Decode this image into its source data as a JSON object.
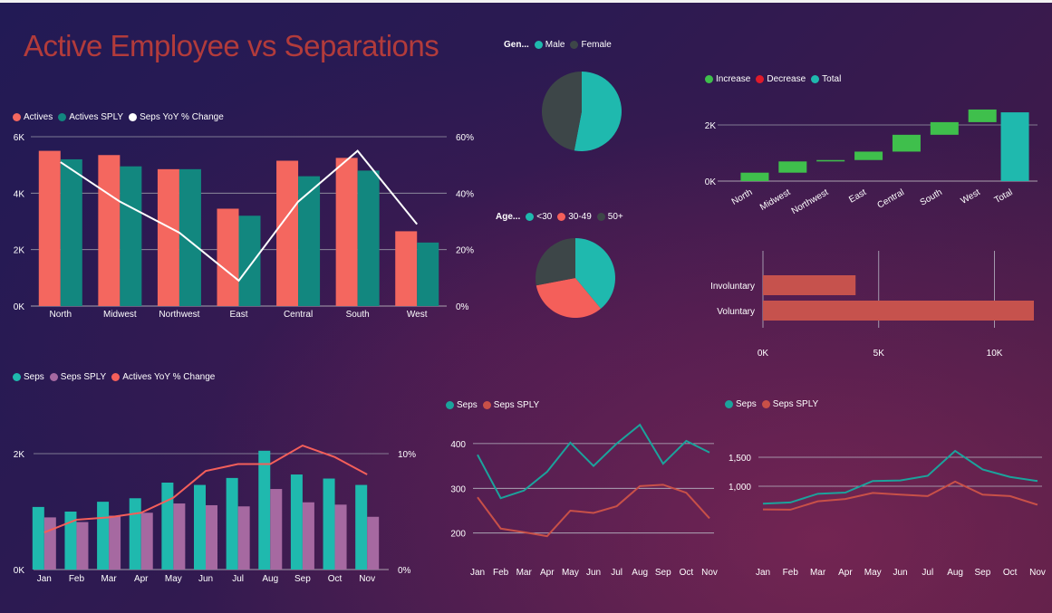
{
  "title": "Active Employee vs Separations",
  "colors": {
    "actives": "#f4675f",
    "actives_sply": "#12877f",
    "white": "#ffffff",
    "teal": "#1fb9ae",
    "violet": "#a669a1",
    "coral": "#f45f5a",
    "increase": "#3fbf4c",
    "decrease": "#e01a2a",
    "dark": "#3d4648",
    "bar_reason": "#c6524d",
    "line_red": "#c85048",
    "line_teal": "#1ba39c"
  },
  "chart_data": [
    {
      "id": "region",
      "type": "bar",
      "title": "",
      "legend": [
        {
          "label": "Actives",
          "color": "#f4675f"
        },
        {
          "label": "Actives SPLY",
          "color": "#12877f"
        },
        {
          "label": "Seps YoY % Change",
          "color": "#ffffff"
        }
      ],
      "categories": [
        "North",
        "Midwest",
        "Northwest",
        "East",
        "Central",
        "South",
        "West"
      ],
      "series": [
        {
          "name": "Actives",
          "values": [
            5500,
            5350,
            4850,
            3450,
            5150,
            5250,
            2650
          ]
        },
        {
          "name": "Actives SPLY",
          "values": [
            5200,
            4950,
            4850,
            3200,
            4600,
            4800,
            2250
          ]
        },
        {
          "name": "Seps YoY % Change",
          "values": [
            51,
            37,
            26,
            9,
            37,
            55,
            29
          ]
        }
      ],
      "y_ticks": [
        "0K",
        "2K",
        "4K",
        "6K"
      ],
      "y2_ticks": [
        "0%",
        "20%",
        "40%",
        "60%"
      ],
      "ylim": [
        0,
        6000
      ],
      "y2lim": [
        0,
        60
      ]
    },
    {
      "id": "gender",
      "type": "pie",
      "legend_title": "Gen...",
      "legend": [
        {
          "label": "Male",
          "color": "#1fb9ae"
        },
        {
          "label": "Female",
          "color": "#3d4648"
        }
      ],
      "values": [
        53,
        47
      ]
    },
    {
      "id": "age",
      "type": "pie",
      "legend_title": "Age...",
      "legend": [
        {
          "label": "<30",
          "color": "#1fb9ae"
        },
        {
          "label": "30-49",
          "color": "#f45f5a"
        },
        {
          "label": "50+",
          "color": "#3d4648"
        }
      ],
      "values": [
        39,
        33,
        28
      ]
    },
    {
      "id": "waterfall",
      "type": "bar",
      "subtype": "waterfall",
      "legend": [
        {
          "label": "Increase",
          "color": "#3fbf4c"
        },
        {
          "label": "Decrease",
          "color": "#e01a2a"
        },
        {
          "label": "Total",
          "color": "#1fb9ae"
        }
      ],
      "categories": [
        "North",
        "Midwest",
        "Northwest",
        "East",
        "Central",
        "South",
        "West",
        "Total"
      ],
      "values": [
        300,
        400,
        50,
        300,
        600,
        450,
        450,
        2450
      ],
      "y_ticks": [
        "0K",
        "2K"
      ],
      "ylim": [
        0,
        2500
      ]
    },
    {
      "id": "reason",
      "type": "bar",
      "orientation": "horizontal",
      "categories": [
        "Involuntary",
        "Voluntary"
      ],
      "values": [
        4000,
        11700
      ],
      "x_ticks": [
        "0K",
        "5K",
        "10K"
      ],
      "xlim": [
        0,
        11700
      ]
    },
    {
      "id": "monthly",
      "type": "bar",
      "legend": [
        {
          "label": "Seps",
          "color": "#1fb9ae"
        },
        {
          "label": "Seps SPLY",
          "color": "#a669a1"
        },
        {
          "label": "Actives YoY % Change",
          "color": "#f45f5a"
        }
      ],
      "categories": [
        "Jan",
        "Feb",
        "Mar",
        "Apr",
        "May",
        "Jun",
        "Jul",
        "Aug",
        "Sep",
        "Oct",
        "Nov"
      ],
      "series": [
        {
          "name": "Seps",
          "values": [
            1080,
            1000,
            1170,
            1230,
            1500,
            1460,
            1580,
            2050,
            1640,
            1570,
            1460
          ]
        },
        {
          "name": "Seps SPLY",
          "values": [
            900,
            820,
            930,
            980,
            1140,
            1110,
            1090,
            1390,
            1160,
            1120,
            910
          ]
        },
        {
          "name": "Actives YoY % Change",
          "values": [
            3.2,
            4.3,
            4.5,
            4.9,
            6.2,
            8.5,
            9.1,
            9.1,
            10.7,
            9.7,
            8.2
          ]
        }
      ],
      "y_ticks": [
        "0K",
        "2K"
      ],
      "y2_ticks": [
        "0%",
        "10%"
      ],
      "ylim": [
        0,
        2200
      ],
      "y2lim": [
        0,
        11
      ]
    },
    {
      "id": "seps_small",
      "type": "line",
      "legend": [
        {
          "label": "Seps",
          "color": "#1ba39c"
        },
        {
          "label": "Seps SPLY",
          "color": "#c85048"
        }
      ],
      "categories": [
        "Jan",
        "Feb",
        "Mar",
        "Apr",
        "May",
        "Jun",
        "Jul",
        "Aug",
        "Sep",
        "Oct",
        "Nov"
      ],
      "series": [
        {
          "name": "Seps",
          "values": [
            375,
            278,
            295,
            337,
            402,
            350,
            400,
            442,
            355,
            406,
            380
          ]
        },
        {
          "name": "Seps SPLY",
          "values": [
            280,
            210,
            202,
            193,
            250,
            245,
            260,
            305,
            308,
            290,
            233
          ]
        }
      ],
      "y_ticks": [
        "200",
        "300",
        "400"
      ],
      "ylim": [
        165,
        420
      ]
    },
    {
      "id": "seps_large",
      "type": "line",
      "legend": [
        {
          "label": "Seps",
          "color": "#1ba39c"
        },
        {
          "label": "Seps SPLY",
          "color": "#c85048"
        }
      ],
      "categories": [
        "Jan",
        "Feb",
        "Mar",
        "Apr",
        "May",
        "Jun",
        "Jul",
        "Aug",
        "Sep",
        "Oct",
        "Nov"
      ],
      "series": [
        {
          "name": "Seps",
          "values": [
            700,
            720,
            870,
            890,
            1090,
            1100,
            1180,
            1610,
            1290,
            1160,
            1090
          ]
        },
        {
          "name": "Seps SPLY",
          "values": [
            600,
            595,
            740,
            780,
            885,
            855,
            830,
            1080,
            855,
            830,
            680
          ]
        }
      ],
      "y_ticks": [
        "1,000",
        "1,500"
      ],
      "ylim": [
        500,
        1500
      ]
    }
  ]
}
